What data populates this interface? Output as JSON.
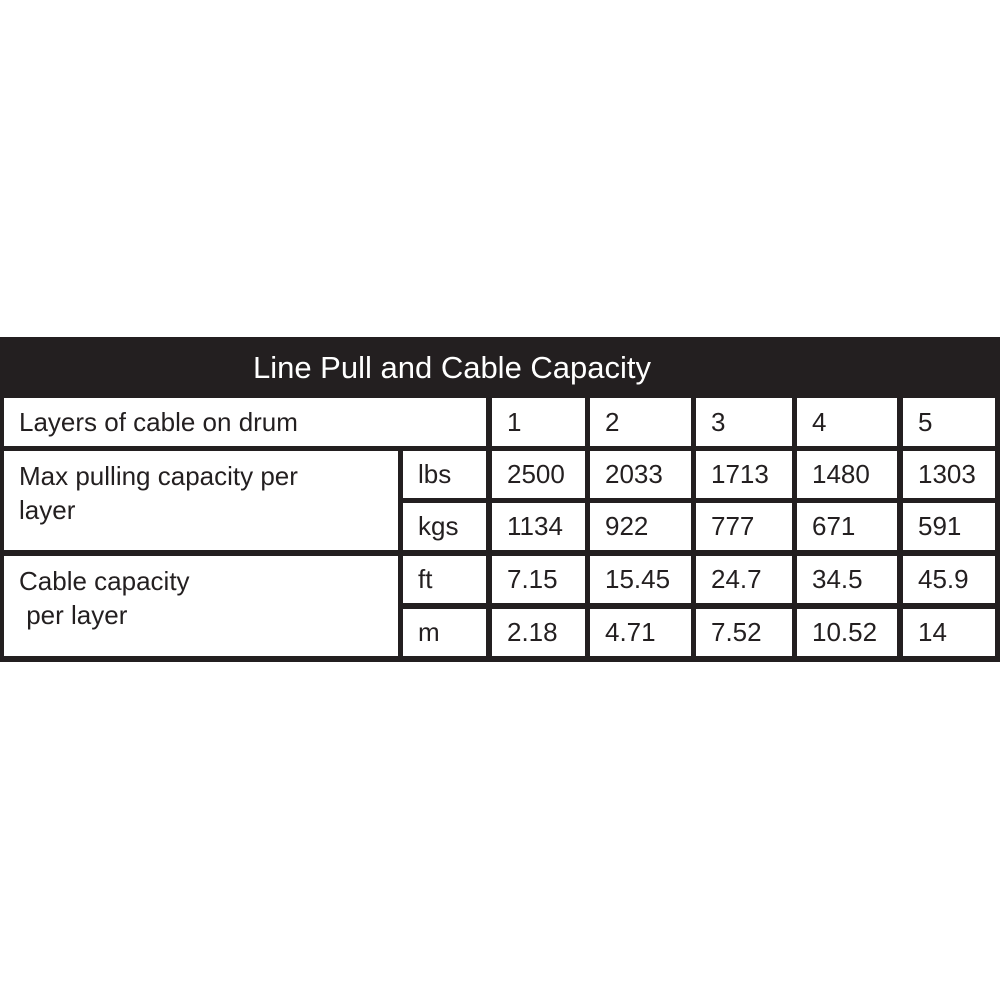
{
  "title": "Line Pull and Cable Capacity",
  "colors": {
    "header_background": "#231f20",
    "header_text": "#ffffff",
    "cell_background": "#ffffff",
    "text": "#231f20"
  },
  "header_row": {
    "label": "Layers of cable on drum",
    "layers": [
      "1",
      "2",
      "3",
      "4",
      "5"
    ]
  },
  "groups": [
    {
      "label_line1": "Max pulling capacity per",
      "label_line2": "layer",
      "rows": [
        {
          "unit": "lbs",
          "values": [
            "2500",
            "2033",
            "1713",
            "1480",
            "1303"
          ]
        },
        {
          "unit": "kgs",
          "values": [
            "1134",
            "922",
            "777",
            "671",
            "591"
          ]
        }
      ]
    },
    {
      "label_line1": "Cable capacity",
      "label_line2": " per layer",
      "rows": [
        {
          "unit": "ft",
          "values": [
            "7.15",
            "15.45",
            "24.7",
            "34.5",
            "45.9"
          ]
        },
        {
          "unit": "m",
          "values": [
            "2.18",
            "4.71",
            "7.52",
            "10.52",
            "14"
          ]
        }
      ]
    }
  ]
}
